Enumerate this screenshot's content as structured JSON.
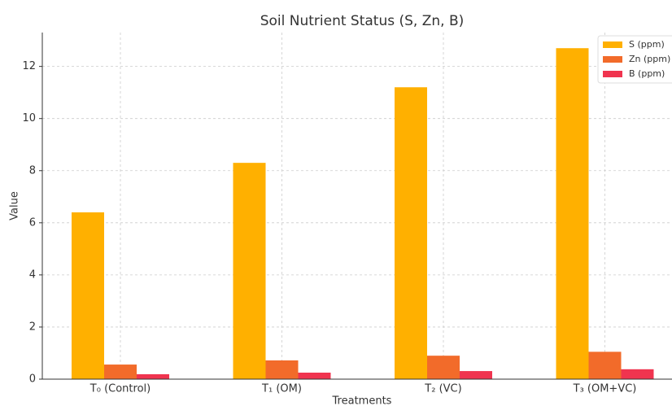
{
  "chart_data": {
    "type": "bar",
    "title": "Soil Nutrient Status (S, Zn, B)",
    "x_label": "Treatments",
    "y_label": "Value",
    "categories": [
      "T₀ (Control)",
      "T₁ (OM)",
      "T₂ (VC)",
      "T₃ (OM+VC)"
    ],
    "series": [
      {
        "name": "S (ppm)",
        "color": "#ffb000",
        "values": [
          6.4,
          8.3,
          11.2,
          12.7
        ]
      },
      {
        "name": "Zn (ppm)",
        "color": "#f26b2a",
        "values": [
          0.56,
          0.72,
          0.9,
          1.05
        ]
      },
      {
        "name": "B (ppm)",
        "color": "#f0344f",
        "values": [
          0.19,
          0.25,
          0.31,
          0.38
        ]
      }
    ],
    "ylim": [
      0,
      13.3
    ],
    "yticks": [
      0,
      2,
      4,
      6,
      8,
      10,
      12
    ],
    "grid": true,
    "legend": "upper right"
  }
}
